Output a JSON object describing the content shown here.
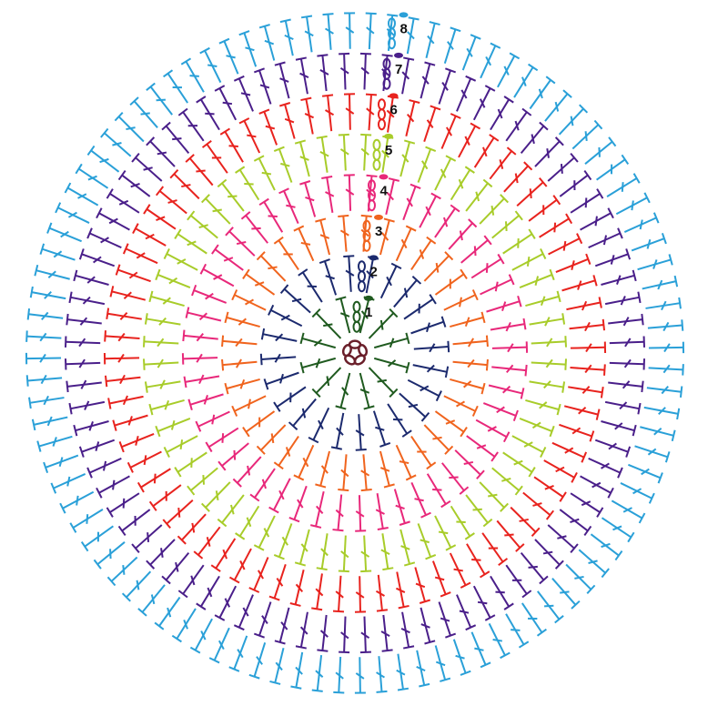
{
  "rounds": [
    {
      "label": "1",
      "color": "#1f5a1f"
    },
    {
      "label": "2",
      "color": "#1c2a6e"
    },
    {
      "label": "3",
      "color": "#f0641e"
    },
    {
      "label": "4",
      "color": "#e8287a"
    },
    {
      "label": "5",
      "color": "#a8cc2a"
    },
    {
      "label": "6",
      "color": "#e8231e"
    },
    {
      "label": "7",
      "color": "#4a1f8a"
    },
    {
      "label": "8",
      "color": "#2aa0d8"
    }
  ]
}
